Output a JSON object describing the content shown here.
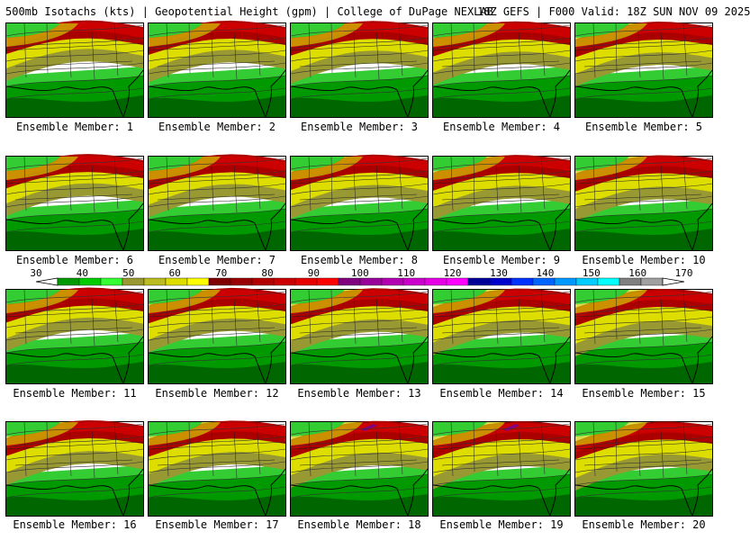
{
  "header": {
    "left": "500mb Isotachs (kts) | Geopotential Height (gpm) | College of DuPage NEXLAB",
    "right": "18Z GEFS | F000 Valid: 18Z SUN NOV 09 2025"
  },
  "colorbar": {
    "units": "kts",
    "tick_values": [
      "30",
      "40",
      "50",
      "60",
      "70",
      "80",
      "90",
      "100",
      "110",
      "120",
      "130",
      "140",
      "150",
      "160",
      "170"
    ],
    "bin_colors": [
      "#006600",
      "#009900",
      "#00cc00",
      "#33ff33",
      "#999933",
      "#bbbb22",
      "#dddd00",
      "#ffff00",
      "#800000",
      "#990000",
      "#b30000",
      "#cc0000",
      "#e60000",
      "#ff0000",
      "#800080",
      "#990099",
      "#b300b3",
      "#cc00cc",
      "#e600e6",
      "#ff00ff",
      "#000099",
      "#0000cc",
      "#0033ff",
      "#0066ff",
      "#0099ff",
      "#00ccff",
      "#00ffff",
      "#808080",
      "#a0a0a0",
      "#c0c0c0"
    ]
  },
  "panels": [
    {
      "label": "Ensemble Member: 1"
    },
    {
      "label": "Ensemble Member: 2"
    },
    {
      "label": "Ensemble Member: 3"
    },
    {
      "label": "Ensemble Member: 4"
    },
    {
      "label": "Ensemble Member: 5"
    },
    {
      "label": "Ensemble Member: 6"
    },
    {
      "label": "Ensemble Member: 7"
    },
    {
      "label": "Ensemble Member: 8"
    },
    {
      "label": "Ensemble Member: 9"
    },
    {
      "label": "Ensemble Member: 10"
    },
    {
      "label": "Ensemble Member: 11"
    },
    {
      "label": "Ensemble Member: 12"
    },
    {
      "label": "Ensemble Member: 13"
    },
    {
      "label": "Ensemble Member: 14"
    },
    {
      "label": "Ensemble Member: 15"
    },
    {
      "label": "Ensemble Member: 16"
    },
    {
      "label": "Ensemble Member: 17"
    },
    {
      "label": "Ensemble Member: 18"
    },
    {
      "label": "Ensemble Member: 19"
    },
    {
      "label": "Ensemble Member: 20"
    }
  ]
}
